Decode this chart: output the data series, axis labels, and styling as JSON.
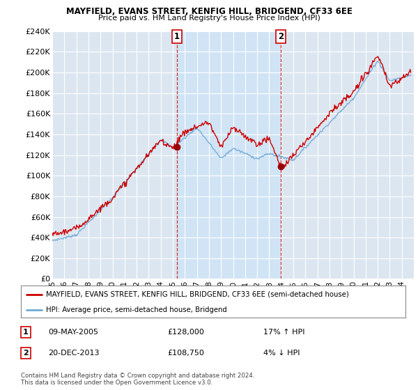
{
  "title1": "MAYFIELD, EVANS STREET, KENFIG HILL, BRIDGEND, CF33 6EE",
  "title2": "Price paid vs. HM Land Registry's House Price Index (HPI)",
  "ylabel_ticks": [
    "£0",
    "£20K",
    "£40K",
    "£60K",
    "£80K",
    "£100K",
    "£120K",
    "£140K",
    "£160K",
    "£180K",
    "£200K",
    "£220K",
    "£240K"
  ],
  "ylim": [
    0,
    240000
  ],
  "yticks": [
    0,
    20000,
    40000,
    60000,
    80000,
    100000,
    120000,
    140000,
    160000,
    180000,
    200000,
    220000,
    240000
  ],
  "background_color": "#dce6f1",
  "shade_color": "#d0e4f5",
  "grid_color": "#ffffff",
  "hpi_color": "#6fa8d6",
  "price_color": "#cc0000",
  "sale1_x": 2005.35,
  "sale1_y": 128000,
  "sale2_x": 2013.97,
  "sale2_y": 108750,
  "legend_label1": "MAYFIELD, EVANS STREET, KENFIG HILL, BRIDGEND, CF33 6EE (semi-detached house)",
  "legend_label2": "HPI: Average price, semi-detached house, Bridgend",
  "footnote": "Contains HM Land Registry data © Crown copyright and database right 2024.\nThis data is licensed under the Open Government Licence v3.0.",
  "xmin": 1995.0,
  "xmax": 2025.0,
  "xtick_labels": [
    "95",
    "96",
    "97",
    "98",
    "99",
    "00",
    "01",
    "02",
    "03",
    "04",
    "05",
    "06",
    "07",
    "08",
    "09",
    "10",
    "11",
    "12",
    "13",
    "14",
    "15",
    "16",
    "17",
    "18",
    "19",
    "20",
    "21",
    "22",
    "23",
    "24"
  ]
}
